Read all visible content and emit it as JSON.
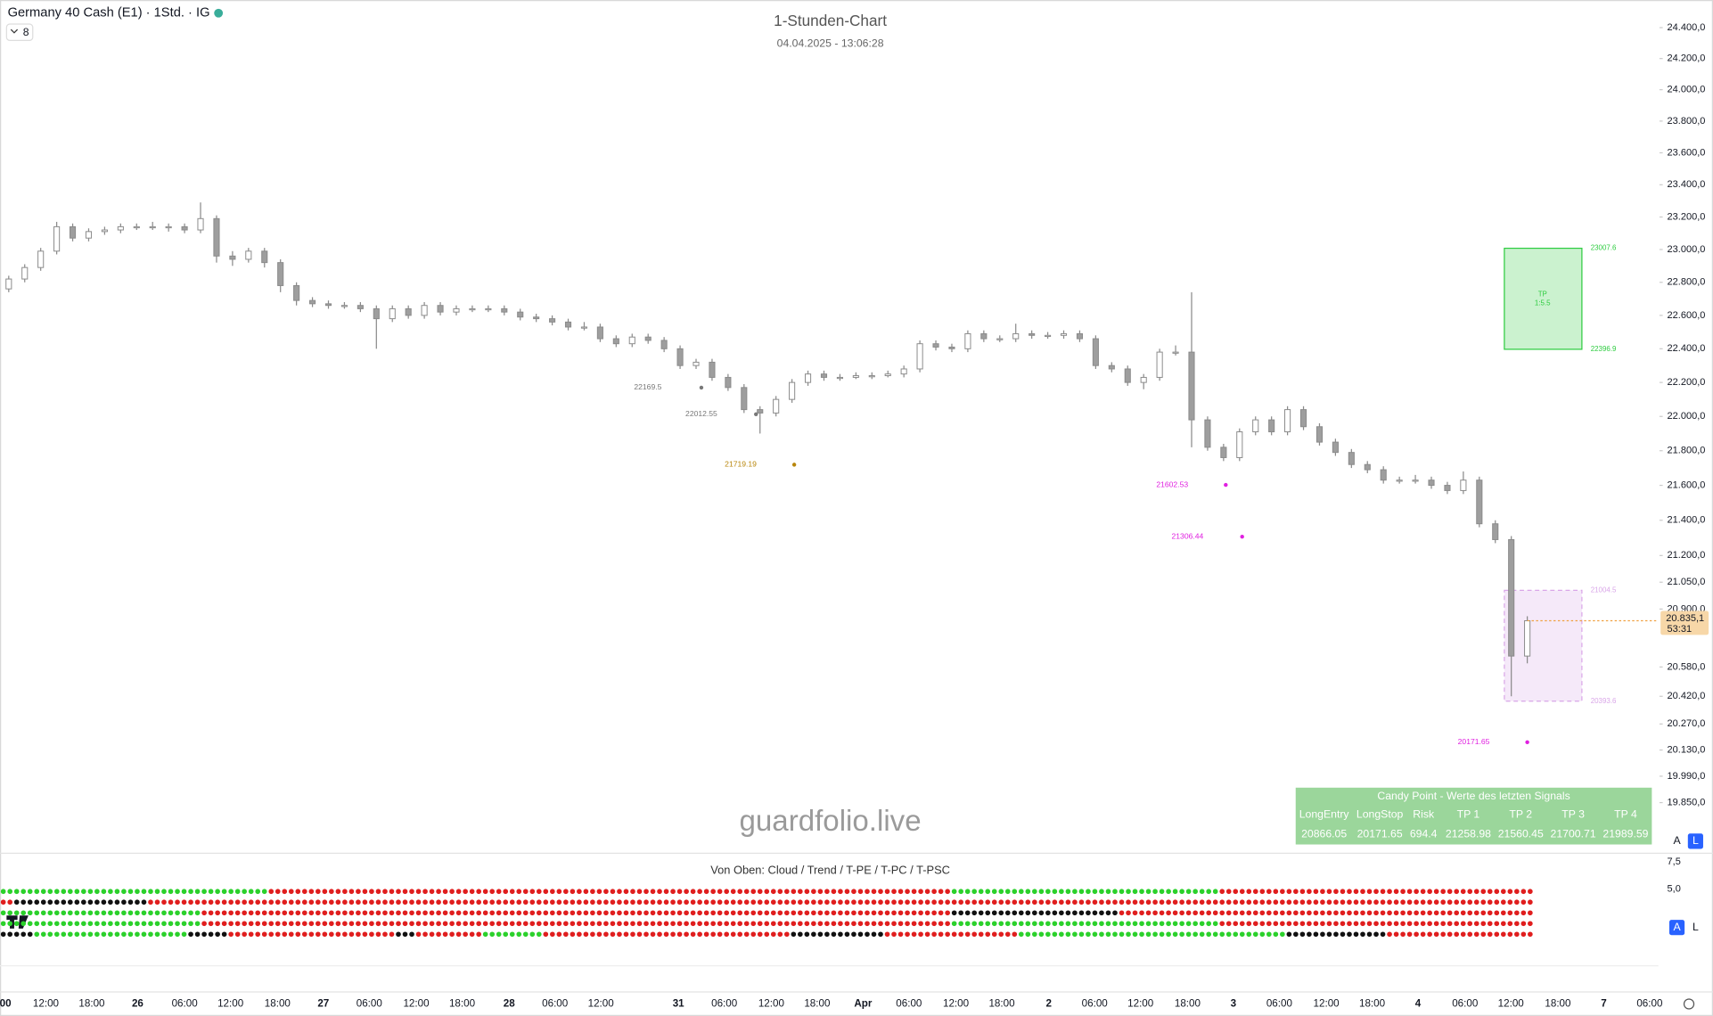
{
  "header": {
    "symbol": "Germany 40 Cash (E1) · 1Std. · IG",
    "indicator_count": 8
  },
  "chart_data": {
    "type": "candlestick",
    "title": "1-Stunden-Chart",
    "subtitle": "04.04.2025 - 13:06:28",
    "watermark": "guardfolio.live",
    "log_scale": true,
    "ylim": [
      19590,
      24580
    ],
    "yticks": [
      {
        "value": 24400,
        "label": "24.400,0"
      },
      {
        "value": 24200,
        "label": "24.200,0"
      },
      {
        "value": 24000,
        "label": "24.000,0"
      },
      {
        "value": 23800,
        "label": "23.800,0"
      },
      {
        "value": 23600,
        "label": "23.600,0"
      },
      {
        "value": 23400,
        "label": "23.400,0"
      },
      {
        "value": 23200,
        "label": "23.200,0"
      },
      {
        "value": 23000,
        "label": "23.000,0"
      },
      {
        "value": 22800,
        "label": "22.800,0"
      },
      {
        "value": 22600,
        "label": "22.600,0"
      },
      {
        "value": 22400,
        "label": "22.400,0"
      },
      {
        "value": 22200,
        "label": "22.200,0"
      },
      {
        "value": 22000,
        "label": "22.000,0"
      },
      {
        "value": 21800,
        "label": "21.800,0"
      },
      {
        "value": 21600,
        "label": "21.600,0"
      },
      {
        "value": 21400,
        "label": "21.400,0"
      },
      {
        "value": 21200,
        "label": "21.200,0"
      },
      {
        "value": 21050,
        "label": "21.050,0"
      },
      {
        "value": 20900,
        "label": "20.900,0"
      },
      {
        "value": 20580,
        "label": "20.580,0"
      },
      {
        "value": 20420,
        "label": "20.420,0"
      },
      {
        "value": 20270,
        "label": "20.270,0"
      },
      {
        "value": 20130,
        "label": "20.130,0"
      },
      {
        "value": 19990,
        "label": "19.990,0"
      },
      {
        "value": 19850,
        "label": "19.850,0"
      }
    ],
    "categories": [
      "00",
      "12:00",
      "18:00",
      "26",
      "06:00",
      "12:00",
      "18:00",
      "27",
      "06:00",
      "12:00",
      "18:00",
      "28",
      "06:00",
      "12:00",
      "31",
      "06:00",
      "12:00",
      "18:00",
      "Apr",
      "06:00",
      "12:00",
      "18:00",
      "2",
      "06:00",
      "12:00",
      "18:00",
      "3",
      "06:00",
      "12:00",
      "18:00",
      "4",
      "06:00",
      "12:00",
      "18:00",
      "7",
      "06:00"
    ],
    "up_color": "#ffffff",
    "down_color": "#9e9e9e",
    "wick_color": "#8a8a8a",
    "candles": [
      [
        22760,
        22840,
        22740,
        22820
      ],
      [
        22820,
        22910,
        22800,
        22890
      ],
      [
        22890,
        23010,
        22870,
        22990
      ],
      [
        22990,
        23170,
        22970,
        23140
      ],
      [
        23140,
        23160,
        23050,
        23070
      ],
      [
        23070,
        23130,
        23050,
        23110
      ],
      [
        23110,
        23140,
        23090,
        23120
      ],
      [
        23120,
        23160,
        23100,
        23140
      ],
      [
        23140,
        23160,
        23120,
        23140
      ],
      [
        23140,
        23170,
        23120,
        23140
      ],
      [
        23140,
        23160,
        23110,
        23140
      ],
      [
        23140,
        23160,
        23100,
        23120
      ],
      [
        23120,
        23290,
        23100,
        23190
      ],
      [
        23190,
        23210,
        22920,
        22960
      ],
      [
        22960,
        22990,
        22900,
        22940
      ],
      [
        22940,
        23010,
        22920,
        22990
      ],
      [
        22990,
        23010,
        22890,
        22920
      ],
      [
        22920,
        22940,
        22740,
        22780
      ],
      [
        22780,
        22800,
        22660,
        22690
      ],
      [
        22690,
        22710,
        22650,
        22670
      ],
      [
        22670,
        22690,
        22640,
        22660
      ],
      [
        22660,
        22680,
        22640,
        22660
      ],
      [
        22660,
        22680,
        22620,
        22640
      ],
      [
        22640,
        22660,
        22400,
        22580
      ],
      [
        22580,
        22660,
        22560,
        22640
      ],
      [
        22640,
        22660,
        22580,
        22600
      ],
      [
        22600,
        22680,
        22580,
        22660
      ],
      [
        22660,
        22680,
        22600,
        22620
      ],
      [
        22620,
        22660,
        22600,
        22640
      ],
      [
        22640,
        22660,
        22620,
        22640
      ],
      [
        22640,
        22660,
        22620,
        22640
      ],
      [
        22640,
        22660,
        22600,
        22620
      ],
      [
        22620,
        22640,
        22570,
        22590
      ],
      [
        22590,
        22610,
        22560,
        22580
      ],
      [
        22580,
        22600,
        22540,
        22560
      ],
      [
        22560,
        22580,
        22510,
        22530
      ],
      [
        22530,
        22560,
        22510,
        22530
      ],
      [
        22530,
        22550,
        22440,
        22460
      ],
      [
        22460,
        22480,
        22410,
        22430
      ],
      [
        22430,
        22490,
        22410,
        22470
      ],
      [
        22470,
        22490,
        22430,
        22450
      ],
      [
        22450,
        22470,
        22380,
        22400
      ],
      [
        22400,
        22420,
        22280,
        22300
      ],
      [
        22300,
        22340,
        22280,
        22320
      ],
      [
        22320,
        22340,
        22210,
        22230
      ],
      [
        22230,
        22250,
        22150,
        22170
      ],
      [
        22170,
        22190,
        22020,
        22040
      ],
      [
        22040,
        22060,
        21900,
        22020
      ],
      [
        22020,
        22120,
        22000,
        22100
      ],
      [
        22100,
        22220,
        22080,
        22200
      ],
      [
        22200,
        22270,
        22180,
        22250
      ],
      [
        22250,
        22270,
        22210,
        22230
      ],
      [
        22230,
        22250,
        22210,
        22230
      ],
      [
        22230,
        22260,
        22220,
        22240
      ],
      [
        22240,
        22260,
        22220,
        22240
      ],
      [
        22240,
        22270,
        22230,
        22250
      ],
      [
        22250,
        22300,
        22230,
        22280
      ],
      [
        22280,
        22450,
        22260,
        22430
      ],
      [
        22430,
        22450,
        22390,
        22410
      ],
      [
        22410,
        22430,
        22380,
        22400
      ],
      [
        22400,
        22510,
        22380,
        22490
      ],
      [
        22490,
        22510,
        22440,
        22460
      ],
      [
        22460,
        22480,
        22440,
        22460
      ],
      [
        22460,
        22550,
        22440,
        22490
      ],
      [
        22490,
        22510,
        22460,
        22480
      ],
      [
        22480,
        22500,
        22460,
        22480
      ],
      [
        22480,
        22510,
        22460,
        22490
      ],
      [
        22490,
        22510,
        22440,
        22460
      ],
      [
        22460,
        22480,
        22280,
        22300
      ],
      [
        22300,
        22320,
        22260,
        22280
      ],
      [
        22280,
        22300,
        22180,
        22200
      ],
      [
        22200,
        22250,
        22160,
        22230
      ],
      [
        22230,
        22400,
        22210,
        22380
      ],
      [
        22380,
        22420,
        22360,
        22380
      ],
      [
        22380,
        22740,
        21820,
        21980
      ],
      [
        21980,
        22000,
        21800,
        21820
      ],
      [
        21820,
        21840,
        21740,
        21760
      ],
      [
        21760,
        21930,
        21740,
        21910
      ],
      [
        21910,
        22000,
        21890,
        21980
      ],
      [
        21980,
        22000,
        21890,
        21910
      ],
      [
        21910,
        22060,
        21890,
        22040
      ],
      [
        22040,
        22060,
        21920,
        21940
      ],
      [
        21940,
        21960,
        21830,
        21850
      ],
      [
        21850,
        21870,
        21770,
        21790
      ],
      [
        21790,
        21810,
        21700,
        21720
      ],
      [
        21720,
        21740,
        21670,
        21690
      ],
      [
        21690,
        21710,
        21610,
        21630
      ],
      [
        21630,
        21650,
        21610,
        21630
      ],
      [
        21630,
        21660,
        21610,
        21630
      ],
      [
        21630,
        21650,
        21580,
        21600
      ],
      [
        21600,
        21620,
        21550,
        21570
      ],
      [
        21570,
        21680,
        21550,
        21630
      ],
      [
        21630,
        21650,
        21360,
        21380
      ],
      [
        21380,
        21400,
        21270,
        21290
      ],
      [
        21290,
        21310,
        20420,
        20640
      ],
      [
        20640,
        20860,
        20600,
        20835
      ]
    ],
    "last_price": {
      "value": 20835.1,
      "label": "20.835,1"
    },
    "countdown": "53:31",
    "annotations": [
      {
        "value": 22169.5,
        "color": "#787878"
      },
      {
        "value": 22012.55,
        "color": "#787878"
      },
      {
        "value": 21719.19,
        "color": "#b8860b"
      },
      {
        "value": 21602.53,
        "color": "#e020e0"
      },
      {
        "value": 21306.44,
        "color": "#e020e0"
      },
      {
        "value": 20171.65,
        "color": "#e020e0"
      }
    ],
    "zones": [
      {
        "top": 23007.6,
        "bottom": 22396.9,
        "color": "#2ecc40",
        "label_lines": [
          "TP",
          "1:5.5"
        ]
      },
      {
        "top": 21004.5,
        "bottom": 20393.6,
        "color": "#d9a6e8"
      }
    ]
  },
  "indicator": {
    "title": "Von Oben: Cloud / Trend / T-PE / T-PC / T-PSC",
    "yticks": [
      {
        "value": 7.5,
        "label": "7,5"
      },
      {
        "value": 5,
        "label": "5,0"
      }
    ],
    "rows": [
      [
        {
          "color": "#2bd12b",
          "count": 40
        },
        {
          "color": "#e01e1e",
          "count": 102
        },
        {
          "color": "#2bd12b",
          "count": 40
        },
        {
          "color": "#e01e1e",
          "count": 47
        }
      ],
      [
        {
          "color": "#e01e1e",
          "count": 2
        },
        {
          "color": "#111111",
          "count": 20
        },
        {
          "color": "#e01e1e",
          "count": 207
        }
      ],
      [
        {
          "color": "#2bd12b",
          "count": 30
        },
        {
          "color": "#e01e1e",
          "count": 112
        },
        {
          "color": "#111111",
          "count": 25
        },
        {
          "color": "#e01e1e",
          "count": 62
        }
      ],
      [
        {
          "color": "#2bd12b",
          "count": 30
        },
        {
          "color": "#e01e1e",
          "count": 112
        },
        {
          "color": "#2bd12b",
          "count": 40
        },
        {
          "color": "#e01e1e",
          "count": 47
        }
      ],
      [
        {
          "color": "#111111",
          "count": 5
        },
        {
          "color": "#2bd12b",
          "count": 23
        },
        {
          "color": "#111111",
          "count": 6
        },
        {
          "color": "#e01e1e",
          "count": 25
        },
        {
          "color": "#111111",
          "count": 3
        },
        {
          "color": "#e01e1e",
          "count": 10
        },
        {
          "color": "#2bd12b",
          "count": 9
        },
        {
          "color": "#e01e1e",
          "count": 37
        },
        {
          "color": "#111111",
          "count": 14
        },
        {
          "color": "#e01e1e",
          "count": 20
        },
        {
          "color": "#2bd12b",
          "count": 40
        },
        {
          "color": "#111111",
          "count": 15
        },
        {
          "color": "#e01e1e",
          "count": 22
        }
      ]
    ]
  },
  "signal_table": {
    "title": "Candy Point - Werte des letzten Signals",
    "columns": [
      "LongEntry",
      "LongStop",
      "Risk",
      "TP 1",
      "TP 2",
      "TP 3",
      "TP 4"
    ],
    "values": [
      20866.05,
      20171.65,
      694.4,
      21258.98,
      21560.45,
      21700.71,
      21989.59
    ]
  },
  "buttons": [
    "A",
    "L"
  ]
}
